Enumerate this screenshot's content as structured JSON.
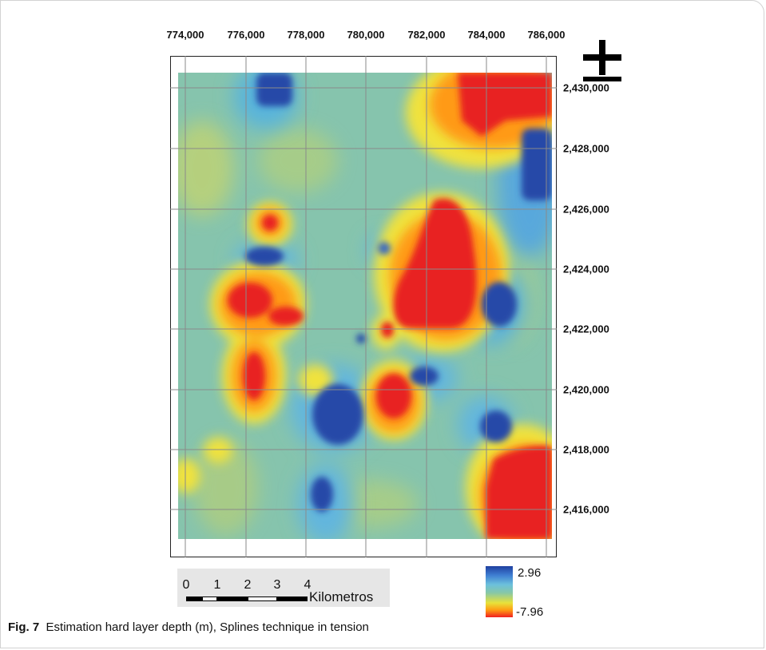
{
  "map": {
    "x_ticks": [
      "774,000",
      "776,000",
      "778,000",
      "780,000",
      "782,000",
      "784,000",
      "786,000"
    ],
    "y_ticks": [
      "2,430,000",
      "2,428,000",
      "2,426,000",
      "2,424,000",
      "2,422,000",
      "2,420,000",
      "2,418,000",
      "2,416,000"
    ],
    "colors": {
      "high": "#1f3fa0",
      "mid": "#86c7a8",
      "low": "#f02020",
      "frame": "#222222",
      "grid": "#8a8a8a"
    }
  },
  "north_arrow": {
    "icon": "north-cross-icon"
  },
  "scale_bar": {
    "labels": [
      "0",
      "1",
      "2",
      "3",
      "4"
    ],
    "unit": "Kilometros"
  },
  "legend": {
    "max_label": "2.96",
    "min_label": "-7.96"
  },
  "caption": {
    "figure_label": "Fig. 7",
    "text": "Estimation hard layer depth (m), Splines technique in tension"
  }
}
